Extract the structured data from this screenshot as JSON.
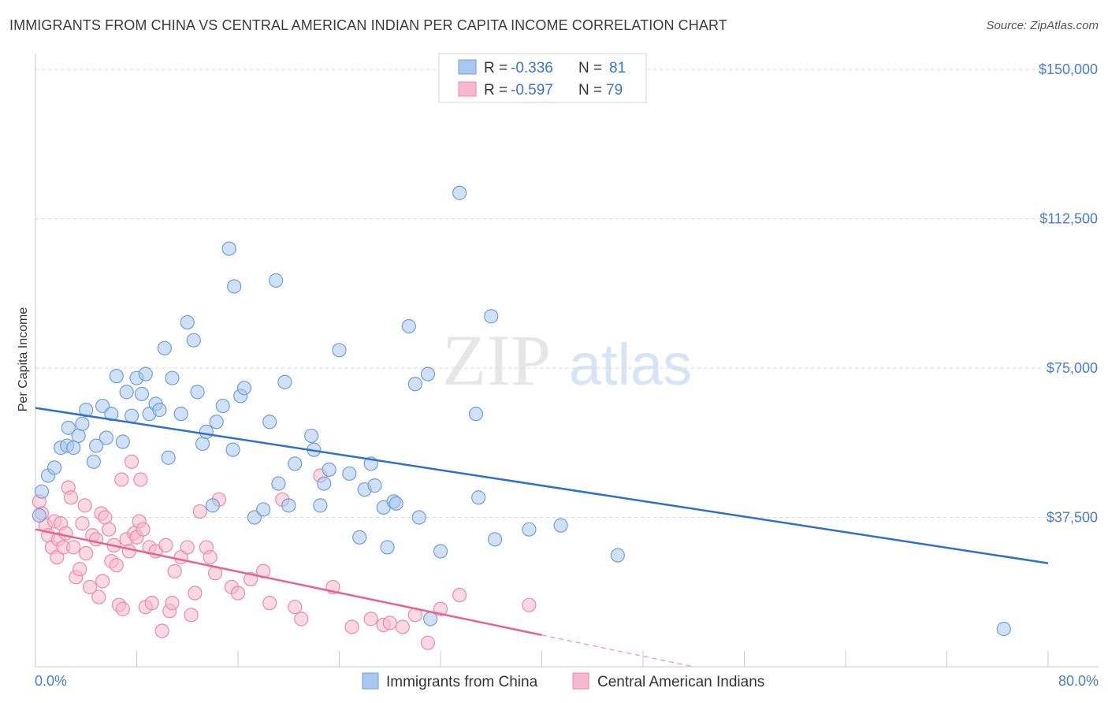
{
  "title": "IMMIGRANTS FROM CHINA VS CENTRAL AMERICAN INDIAN PER CAPITA INCOME CORRELATION CHART",
  "source": "Source: ZipAtlas.com",
  "watermark": {
    "zip": "ZIP",
    "atlas": "atlas"
  },
  "colors": {
    "blue_fill": "#a9c8ef",
    "blue_stroke": "#6f9fd8",
    "blue_line": "#2f6fce",
    "pink_fill": "#f6b9cc",
    "pink_stroke": "#ec8aa9",
    "pink_line": "#e5648f",
    "grid": "#d9d9d9",
    "tick_text": "#4a7fc6"
  },
  "legend": {
    "r_label": "R =",
    "n_label": "N =",
    "rows": [
      {
        "r": "-0.336",
        "n": "81"
      },
      {
        "r": "-0.597",
        "n": "79"
      }
    ]
  },
  "chart_data": {
    "type": "scatter",
    "title": "IMMIGRANTS FROM CHINA VS CENTRAL AMERICAN INDIAN PER CAPITA INCOME CORRELATION CHART",
    "xlabel": "",
    "ylabel": "Per Capita Income",
    "xlim": [
      0,
      80
    ],
    "ylim": [
      0,
      152000
    ],
    "x_tick_labels": [
      "0.0%",
      "80.0%"
    ],
    "y_ticks": [
      37500,
      75000,
      112500,
      150000
    ],
    "y_tick_labels": [
      "$37,500",
      "$75,000",
      "$112,500",
      "$150,000"
    ],
    "grid": true,
    "legend_position": "top-center",
    "series": [
      {
        "name": "Immigrants from China",
        "color": "blue",
        "r": -0.336,
        "n": 81,
        "trend": {
          "x0": 0,
          "y0": 65000,
          "x1": 80,
          "y1": 26000,
          "solid_until": 80
        },
        "points": [
          [
            0.3,
            38000
          ],
          [
            0.5,
            44000
          ],
          [
            1.0,
            48000
          ],
          [
            1.5,
            50000
          ],
          [
            2.0,
            55000
          ],
          [
            2.5,
            55500
          ],
          [
            2.6,
            60000
          ],
          [
            3.0,
            55000
          ],
          [
            3.4,
            58000
          ],
          [
            3.7,
            61000
          ],
          [
            4.0,
            64500
          ],
          [
            4.6,
            51500
          ],
          [
            4.8,
            55500
          ],
          [
            5.3,
            65500
          ],
          [
            5.6,
            57500
          ],
          [
            6.0,
            63500
          ],
          [
            6.4,
            73000
          ],
          [
            6.9,
            56500
          ],
          [
            7.2,
            69000
          ],
          [
            7.6,
            63000
          ],
          [
            8.0,
            72500
          ],
          [
            8.4,
            68500
          ],
          [
            8.7,
            73500
          ],
          [
            9.0,
            63500
          ],
          [
            9.5,
            66000
          ],
          [
            9.8,
            64500
          ],
          [
            10.2,
            80000
          ],
          [
            10.5,
            52500
          ],
          [
            10.8,
            72500
          ],
          [
            11.5,
            63500
          ],
          [
            12.0,
            86500
          ],
          [
            12.5,
            82000
          ],
          [
            12.8,
            69000
          ],
          [
            13.2,
            56000
          ],
          [
            13.5,
            59000
          ],
          [
            14.0,
            40500
          ],
          [
            14.3,
            61500
          ],
          [
            14.8,
            65500
          ],
          [
            15.3,
            105000
          ],
          [
            15.6,
            54500
          ],
          [
            15.7,
            95500
          ],
          [
            16.2,
            68000
          ],
          [
            16.5,
            70000
          ],
          [
            17.3,
            37500
          ],
          [
            18.0,
            39500
          ],
          [
            18.5,
            61500
          ],
          [
            19.0,
            97000
          ],
          [
            19.2,
            46000
          ],
          [
            19.7,
            71500
          ],
          [
            20.0,
            40500
          ],
          [
            20.5,
            51000
          ],
          [
            21.8,
            58000
          ],
          [
            22.0,
            54500
          ],
          [
            22.5,
            40500
          ],
          [
            22.8,
            46000
          ],
          [
            23.2,
            49500
          ],
          [
            24.0,
            79500
          ],
          [
            24.8,
            48500
          ],
          [
            25.6,
            32500
          ],
          [
            26.0,
            44500
          ],
          [
            26.5,
            51000
          ],
          [
            26.8,
            45500
          ],
          [
            27.5,
            40000
          ],
          [
            27.8,
            30000
          ],
          [
            28.3,
            41500
          ],
          [
            28.5,
            41000
          ],
          [
            29.5,
            85500
          ],
          [
            30.0,
            71000
          ],
          [
            30.3,
            37500
          ],
          [
            31.0,
            73500
          ],
          [
            31.2,
            12000
          ],
          [
            32.0,
            29000
          ],
          [
            33.5,
            119000
          ],
          [
            34.8,
            63500
          ],
          [
            35.0,
            42500
          ],
          [
            36.0,
            88000
          ],
          [
            36.3,
            32000
          ],
          [
            39.0,
            34500
          ],
          [
            41.5,
            35500
          ],
          [
            46.0,
            28000
          ],
          [
            76.5,
            9500
          ]
        ]
      },
      {
        "name": "Central American Indians",
        "color": "pink",
        "r": -0.597,
        "n": 79,
        "trend": {
          "x0": 0,
          "y0": 34500,
          "x1": 52,
          "y1": 0,
          "solid_until": 40
        },
        "points": [
          [
            0.3,
            41500
          ],
          [
            0.5,
            38500
          ],
          [
            0.8,
            35500
          ],
          [
            1.0,
            33000
          ],
          [
            1.3,
            30000
          ],
          [
            1.5,
            36500
          ],
          [
            1.7,
            27500
          ],
          [
            1.8,
            32000
          ],
          [
            2.0,
            36000
          ],
          [
            2.2,
            30000
          ],
          [
            2.4,
            33500
          ],
          [
            2.6,
            45000
          ],
          [
            2.8,
            42500
          ],
          [
            3.0,
            30000
          ],
          [
            3.2,
            22500
          ],
          [
            3.5,
            24500
          ],
          [
            3.7,
            36000
          ],
          [
            3.9,
            40500
          ],
          [
            4.0,
            28500
          ],
          [
            4.3,
            20000
          ],
          [
            4.5,
            33000
          ],
          [
            4.8,
            32000
          ],
          [
            5.0,
            17500
          ],
          [
            5.2,
            38500
          ],
          [
            5.3,
            21500
          ],
          [
            5.5,
            37500
          ],
          [
            5.8,
            34500
          ],
          [
            6.0,
            26500
          ],
          [
            6.2,
            30500
          ],
          [
            6.4,
            25500
          ],
          [
            6.6,
            15500
          ],
          [
            6.8,
            47000
          ],
          [
            6.9,
            14500
          ],
          [
            7.2,
            32000
          ],
          [
            7.4,
            29000
          ],
          [
            7.6,
            51500
          ],
          [
            7.8,
            33500
          ],
          [
            8.0,
            32500
          ],
          [
            8.2,
            36500
          ],
          [
            8.3,
            47000
          ],
          [
            8.5,
            34500
          ],
          [
            8.7,
            15000
          ],
          [
            9.0,
            30000
          ],
          [
            9.2,
            16000
          ],
          [
            9.5,
            29000
          ],
          [
            10.0,
            9000
          ],
          [
            10.3,
            30500
          ],
          [
            10.6,
            14000
          ],
          [
            10.8,
            16000
          ],
          [
            11.0,
            24000
          ],
          [
            11.5,
            27500
          ],
          [
            12.0,
            30000
          ],
          [
            12.3,
            13000
          ],
          [
            12.6,
            18500
          ],
          [
            13.0,
            39000
          ],
          [
            13.5,
            30000
          ],
          [
            13.8,
            27500
          ],
          [
            14.2,
            23500
          ],
          [
            14.5,
            42000
          ],
          [
            15.5,
            20000
          ],
          [
            16.0,
            18500
          ],
          [
            17.0,
            22000
          ],
          [
            18.0,
            24000
          ],
          [
            18.5,
            16000
          ],
          [
            19.5,
            42000
          ],
          [
            20.5,
            15000
          ],
          [
            21.0,
            12000
          ],
          [
            22.5,
            48000
          ],
          [
            23.5,
            20000
          ],
          [
            25.0,
            10000
          ],
          [
            26.5,
            12000
          ],
          [
            27.5,
            10500
          ],
          [
            28.0,
            11000
          ],
          [
            29.0,
            10000
          ],
          [
            30.0,
            13000
          ],
          [
            31.0,
            6000
          ],
          [
            32.0,
            14500
          ],
          [
            33.5,
            18000
          ],
          [
            39.0,
            15500
          ]
        ]
      }
    ]
  }
}
